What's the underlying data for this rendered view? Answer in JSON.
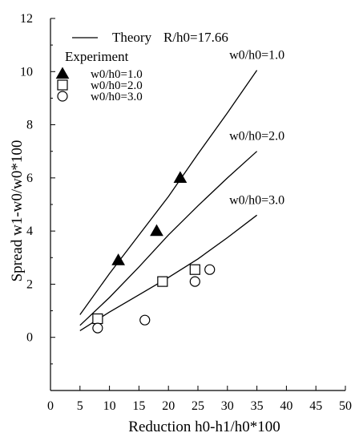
{
  "chart_data": {
    "type": "scatter",
    "xlabel": "Reduction h0-h1/h0*100",
    "ylabel": "Spread w1-w0/w0*100",
    "xlim": [
      0,
      50
    ],
    "ylim": [
      -2,
      12
    ],
    "x_ticks": [
      "0",
      "5",
      "10",
      "15",
      "20",
      "25",
      "30",
      "35",
      "40",
      "45",
      "50"
    ],
    "y_ticks": [
      "0",
      "2",
      "4",
      "6",
      "8",
      "10",
      "12"
    ],
    "grid": false,
    "legend": {
      "placement": "top-left",
      "theory_label": "Theory",
      "theory_param": "R/h0=17.66",
      "experiment_heading": "Experiment"
    },
    "theory_curves": [
      {
        "label": "w0/h0=1.0",
        "x": [
          5,
          10,
          15,
          20,
          25,
          30,
          35
        ],
        "y": [
          0.85,
          2.4,
          3.85,
          5.3,
          6.9,
          8.45,
          10.05
        ]
      },
      {
        "label": "w0/h0=2.0",
        "x": [
          5,
          10,
          15,
          20,
          25,
          30,
          35
        ],
        "y": [
          0.45,
          1.5,
          2.65,
          3.85,
          4.95,
          6.0,
          7.0
        ]
      },
      {
        "label": "w0/h0=3.0",
        "x": [
          5,
          10,
          15,
          20,
          25,
          30,
          35
        ],
        "y": [
          0.25,
          0.95,
          1.6,
          2.25,
          2.95,
          3.75,
          4.6
        ]
      }
    ],
    "series": [
      {
        "name": "w0/h0=1.0",
        "marker": "filled-triangle",
        "x": [
          11.5,
          18.0,
          22.0
        ],
        "y": [
          2.9,
          4.0,
          6.0
        ]
      },
      {
        "name": "w0/h0=2.0",
        "marker": "open-square",
        "x": [
          8.0,
          19.0,
          24.5
        ],
        "y": [
          0.7,
          2.1,
          2.55
        ]
      },
      {
        "name": "w0/h0=3.0",
        "marker": "open-circle",
        "x": [
          8.0,
          16.0,
          24.5,
          27.0
        ],
        "y": [
          0.35,
          0.65,
          2.1,
          2.55
        ]
      }
    ],
    "colors": {
      "ink": "#000000",
      "background": "#ffffff"
    }
  }
}
